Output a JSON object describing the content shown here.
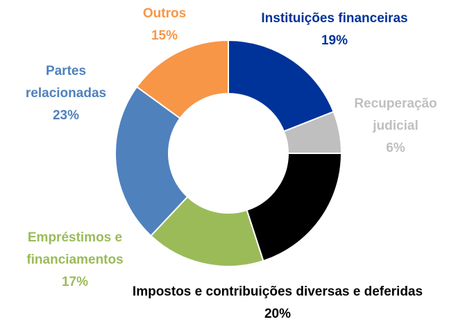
{
  "chart_data": {
    "type": "pie",
    "donut": true,
    "categories": [
      "Instituições financeiras",
      "Recuperação judicial",
      "Impostos e contribuições diversas e deferidas",
      "Empréstimos e financiamentos",
      "Partes relacionadas",
      "Outros"
    ],
    "values": [
      19,
      6,
      20,
      17,
      23,
      15
    ],
    "value_labels": [
      "19%",
      "6%",
      "20%",
      "17%",
      "23%",
      "15%"
    ],
    "colors": [
      "#003399",
      "#bfbfbf",
      "#000000",
      "#9bbb59",
      "#4f81bd",
      "#f79646"
    ]
  }
}
